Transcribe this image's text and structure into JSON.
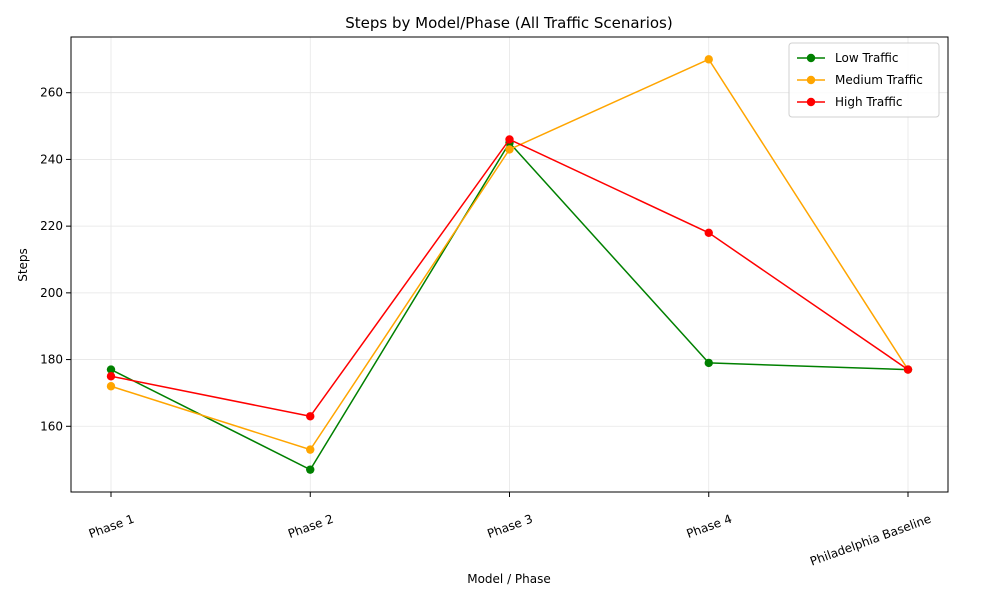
{
  "chart_data": {
    "type": "line",
    "title": "Steps by Model/Phase (All Traffic Scenarios)",
    "xlabel": "Model / Phase",
    "ylabel": "Steps",
    "categories": [
      "Phase 1",
      "Phase 2",
      "Phase 3",
      "Phase 4",
      "Philadelphia Baseline"
    ],
    "ylim": [
      140.3,
      276.7
    ],
    "yticks": [
      160,
      180,
      200,
      220,
      240,
      260
    ],
    "grid": true,
    "legend_position": "top-right",
    "series": [
      {
        "name": "Low Traffic",
        "color": "#008000",
        "values": [
          177,
          147,
          245,
          179,
          177
        ]
      },
      {
        "name": "Medium Traffic",
        "color": "#ffa500",
        "values": [
          172,
          153,
          243,
          270,
          177
        ]
      },
      {
        "name": "High Traffic",
        "color": "#ff0000",
        "values": [
          175,
          163,
          246,
          218,
          177
        ]
      }
    ]
  }
}
